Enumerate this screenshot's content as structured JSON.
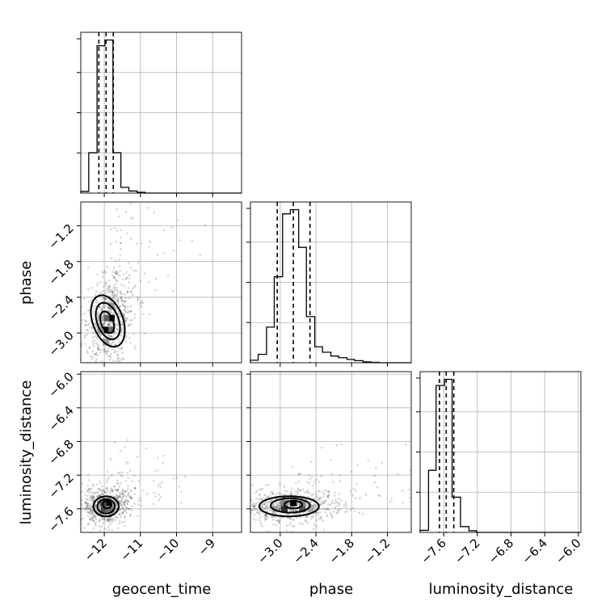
{
  "chart_data": {
    "type": "corner",
    "parameters": [
      "geocent_time",
      "phase",
      "luminosity_distance"
    ],
    "xlabels": [
      "geocent_time",
      "phase",
      "luminosity_distance"
    ],
    "ylabels": [
      "phase",
      "luminosity_distance"
    ],
    "grid": true,
    "ranges": {
      "geocent_time": [
        -12.65,
        -8.2
      ],
      "phase": [
        -3.5,
        -0.8
      ],
      "luminosity_distance": [
        -7.88,
        -5.97
      ]
    },
    "ticks": {
      "geocent_time": [
        {
          "value": -12,
          "label": "−12"
        },
        {
          "value": -11,
          "label": "−11"
        },
        {
          "value": -10,
          "label": "−10"
        },
        {
          "value": -9,
          "label": "−9"
        }
      ],
      "phase": [
        {
          "value": -3.0,
          "label": "−3.0"
        },
        {
          "value": -2.4,
          "label": "−2.4"
        },
        {
          "value": -1.8,
          "label": "−1.8"
        },
        {
          "value": -1.2,
          "label": "−1.2"
        }
      ],
      "luminosity_distance": [
        {
          "value": -7.6,
          "label": "−7.6"
        },
        {
          "value": -7.2,
          "label": "−7.2"
        },
        {
          "value": -6.8,
          "label": "−6.8"
        },
        {
          "value": -6.4,
          "label": "−6.4"
        },
        {
          "value": -6.0,
          "label": "−6.0"
        }
      ]
    },
    "histograms": [
      {
        "parameter": "geocent_time",
        "bin_edges": [
          -12.65,
          -12.43,
          -12.2,
          -11.98,
          -11.76,
          -11.54,
          -11.32,
          -11.09,
          -10.87,
          -10.65,
          -10.43,
          -10.21,
          -9.98,
          -9.76,
          -9.54,
          -9.32,
          -9.1,
          -8.87,
          -8.65,
          -8.43,
          -8.2
        ],
        "counts": [
          4,
          98,
          358,
          372,
          98,
          14,
          5,
          2,
          0,
          0,
          0,
          0,
          0,
          0,
          0,
          0,
          0,
          0,
          0,
          0
        ],
        "quantiles": [
          -12.15,
          -11.95,
          -11.75
        ]
      },
      {
        "parameter": "phase",
        "bin_edges": [
          -3.5,
          -3.37,
          -3.23,
          -3.1,
          -2.96,
          -2.83,
          -2.69,
          -2.56,
          -2.42,
          -2.29,
          -2.15,
          -2.02,
          -1.88,
          -1.75,
          -1.61,
          -1.48,
          -1.34,
          -1.21,
          -1.07,
          -0.94,
          -0.8
        ],
        "counts": [
          6,
          20,
          85,
          205,
          355,
          365,
          275,
          110,
          38,
          25,
          16,
          12,
          8,
          5,
          2,
          1,
          0,
          0,
          0,
          0
        ],
        "quantiles": [
          -3.05,
          -2.78,
          -2.5
        ]
      },
      {
        "parameter": "luminosity_distance",
        "bin_edges": [
          -7.88,
          -7.78,
          -7.69,
          -7.59,
          -7.5,
          -7.4,
          -7.3,
          -7.21,
          -7.11,
          -7.02,
          -6.92,
          -6.83,
          -6.73,
          -6.64,
          -6.54,
          -6.45,
          -6.35,
          -6.26,
          -6.16,
          -6.07,
          -5.97
        ],
        "counts": [
          5,
          150,
          355,
          370,
          85,
          14,
          4,
          0,
          0,
          0,
          0,
          0,
          0,
          0,
          0,
          0,
          0,
          0,
          0,
          0
        ],
        "quantiles": [
          -7.65,
          -7.57,
          -7.48
        ]
      }
    ],
    "joint_distributions": [
      {
        "x": "geocent_time",
        "y": "phase",
        "peak": [
          -11.9,
          -2.85
        ],
        "contour_levels": [
          {
            "center": [
              -11.9,
              -2.8
            ],
            "semi_axes": [
              0.42,
              0.45
            ],
            "rotation_deg": 20
          },
          {
            "center": [
              -11.9,
              -2.8
            ],
            "semi_axes": [
              0.3,
              0.32
            ],
            "rotation_deg": 20
          },
          {
            "center": [
              -11.92,
              -2.82
            ],
            "semi_axes": [
              0.17,
              0.19
            ],
            "rotation_deg": 20
          }
        ],
        "density_cells": [
          {
            "x": -11.95,
            "y": -2.95,
            "level": 1.0
          },
          {
            "x": -11.8,
            "y": -2.75,
            "level": 0.95
          },
          {
            "x": -11.95,
            "y": -2.75,
            "level": 0.6
          },
          {
            "x": -11.8,
            "y": -2.95,
            "level": 0.55
          },
          {
            "x": -12.1,
            "y": -2.95,
            "level": 0.35
          },
          {
            "x": -11.8,
            "y": -2.55,
            "level": 0.35
          },
          {
            "x": -11.95,
            "y": -3.15,
            "level": 0.35
          },
          {
            "x": -12.1,
            "y": -2.75,
            "level": 0.25
          }
        ]
      },
      {
        "x": "geocent_time",
        "y": "luminosity_distance",
        "peak": [
          -11.9,
          -7.55
        ],
        "contour_levels": [
          {
            "center": [
              -11.95,
              -7.57
            ],
            "semi_axes": [
              0.35,
              0.12
            ],
            "rotation_deg": 0
          },
          {
            "center": [
              -11.95,
              -7.57
            ],
            "semi_axes": [
              0.24,
              0.085
            ],
            "rotation_deg": 0
          },
          {
            "center": [
              -11.92,
              -7.55
            ],
            "semi_axes": [
              0.12,
              0.045
            ],
            "rotation_deg": 0
          }
        ],
        "density_cells": [
          {
            "x": -11.88,
            "y": -7.53,
            "level": 1.0
          },
          {
            "x": -12.03,
            "y": -7.53,
            "level": 0.7
          },
          {
            "x": -12.03,
            "y": -7.6,
            "level": 0.7
          },
          {
            "x": -11.88,
            "y": -7.6,
            "level": 0.55
          },
          {
            "x": -11.73,
            "y": -7.53,
            "level": 0.3
          },
          {
            "x": -12.18,
            "y": -7.6,
            "level": 0.25
          }
        ]
      },
      {
        "x": "phase",
        "y": "luminosity_distance",
        "peak": [
          -2.78,
          -7.55
        ],
        "contour_levels": [
          {
            "center": [
              -2.85,
              -7.57
            ],
            "semi_axes": [
              0.5,
              0.12
            ],
            "rotation_deg": 0
          },
          {
            "center": [
              -2.83,
              -7.56
            ],
            "semi_axes": [
              0.33,
              0.085
            ],
            "rotation_deg": 0
          },
          {
            "center": [
              -2.78,
              -7.55
            ],
            "semi_axes": [
              0.15,
              0.045
            ],
            "rotation_deg": 0
          }
        ],
        "density_cells": [
          {
            "x": -2.78,
            "y": -7.53,
            "level": 1.0
          },
          {
            "x": -2.93,
            "y": -7.6,
            "level": 0.8
          },
          {
            "x": -2.63,
            "y": -7.6,
            "level": 0.65
          },
          {
            "x": -2.93,
            "y": -7.53,
            "level": 0.45
          },
          {
            "x": -2.63,
            "y": -7.53,
            "level": 0.45
          },
          {
            "x": -3.08,
            "y": -7.6,
            "level": 0.3
          },
          {
            "x": -2.48,
            "y": -7.6,
            "level": 0.3
          }
        ]
      }
    ]
  }
}
